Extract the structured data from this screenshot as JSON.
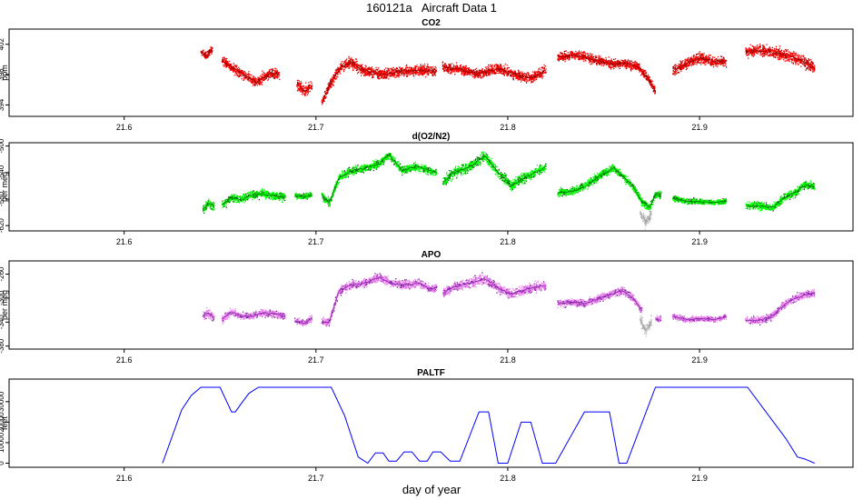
{
  "page": {
    "title": "160121a   Aircraft Data 1",
    "xlabel": "day of year"
  },
  "chart_data": [
    {
      "type": "scatter",
      "title": "CO2",
      "ylabel": "ppm",
      "xlim": [
        21.54,
        21.98
      ],
      "ylim": [
        392.5,
        404
      ],
      "xticks": [
        21.6,
        21.7,
        21.8,
        21.9
      ],
      "yticks": [
        394,
        398,
        402
      ],
      "color": "#ff0000",
      "line_color": "#8b0000",
      "segments": [
        {
          "x": [
            21.64,
            21.643,
            21.646
          ],
          "y": [
            401.0,
            400.4,
            401.4
          ],
          "spread": 1.2
        },
        {
          "x": [
            21.651,
            21.656,
            21.661,
            21.666,
            21.669,
            21.672,
            21.676,
            21.681
          ],
          "y": [
            399.9,
            399.0,
            398.2,
            397.4,
            397.0,
            397.5,
            398.2,
            398.0
          ],
          "spread": 1.6
        },
        {
          "x": [
            21.69,
            21.694,
            21.698
          ],
          "y": [
            396.8,
            395.8,
            396.5
          ],
          "spread": 1.8
        },
        {
          "x": [
            21.703,
            21.705,
            21.708,
            21.713,
            21.718,
            21.725,
            21.735,
            21.745,
            21.755,
            21.763
          ],
          "y": [
            394.0,
            395.5,
            397.0,
            399.0,
            399.6,
            398.5,
            398.0,
            398.4,
            398.6,
            398.5
          ],
          "spread": 1.6
        },
        {
          "x": [
            21.766,
            21.775,
            21.785,
            21.795,
            21.805,
            21.812,
            21.82
          ],
          "y": [
            399.0,
            398.7,
            398.1,
            398.8,
            397.9,
            397.5,
            398.6
          ],
          "spread": 1.6
        },
        {
          "x": [
            21.826,
            21.835,
            21.845,
            21.855,
            21.862,
            21.868,
            21.873,
            21.877
          ],
          "y": [
            400.3,
            400.6,
            400.0,
            399.4,
            399.5,
            399.0,
            397.6,
            395.8
          ],
          "spread": 1.4
        },
        {
          "x": [
            21.886,
            21.893,
            21.9,
            21.907,
            21.914
          ],
          "y": [
            398.5,
            399.4,
            400.2,
            399.8,
            399.7
          ],
          "spread": 1.6
        },
        {
          "x": [
            21.924,
            21.932,
            21.94,
            21.948,
            21.955,
            21.96
          ],
          "y": [
            401.0,
            401.2,
            400.8,
            400.4,
            399.6,
            398.8
          ],
          "spread": 1.8
        }
      ]
    },
    {
      "type": "scatter",
      "title": "d(O2/N2)",
      "ylabel": "per meg",
      "xlim": [
        21.54,
        21.98
      ],
      "ylim": [
        -628,
        -495
      ],
      "xticks": [
        21.6,
        21.7,
        21.8,
        21.9
      ],
      "yticks": [
        -500,
        -540,
        -580,
        -620
      ],
      "color": "#00ff00",
      "line_color": "#006400",
      "segments": [
        {
          "x": [
            21.641,
            21.644,
            21.647
          ],
          "y": [
            -595,
            -587,
            -591
          ],
          "spread": 16
        },
        {
          "x": [
            21.651,
            21.656,
            21.661,
            21.666,
            21.672,
            21.678,
            21.684
          ],
          "y": [
            -589,
            -578,
            -581,
            -574,
            -572,
            -575,
            -577
          ],
          "spread": 14
        },
        {
          "x": [
            21.689,
            21.694,
            21.698
          ],
          "y": [
            -575,
            -576,
            -574
          ],
          "spread": 10
        },
        {
          "x": [
            21.703,
            21.707,
            21.712,
            21.718,
            21.725,
            21.733,
            21.738,
            21.745,
            21.752,
            21.758,
            21.763
          ],
          "y": [
            -575,
            -586,
            -548,
            -538,
            -534,
            -527,
            -513,
            -537,
            -531,
            -536,
            -540
          ],
          "spread": 14
        },
        {
          "x": [
            21.766,
            21.772,
            21.78,
            21.788,
            21.795,
            21.802,
            21.808,
            21.815,
            21.82
          ],
          "y": [
            -556,
            -540,
            -532,
            -515,
            -540,
            -560,
            -549,
            -539,
            -531
          ],
          "spread": 18
        },
        {
          "x": [
            21.826,
            21.833,
            21.84,
            21.848,
            21.855,
            21.86,
            21.866,
            21.87,
            21.874,
            21.877,
            21.88
          ],
          "y": [
            -570,
            -569,
            -561,
            -545,
            -533,
            -545,
            -564,
            -584,
            -593,
            -574,
            -574
          ],
          "spread": 14
        },
        {
          "x": [
            21.886,
            21.893,
            21.9,
            21.908,
            21.914
          ],
          "y": [
            -578,
            -583,
            -584,
            -585,
            -583
          ],
          "spread": 10
        },
        {
          "x": [
            21.924,
            21.932,
            21.938,
            21.944,
            21.95,
            21.955,
            21.96
          ],
          "y": [
            -590,
            -590,
            -593,
            -578,
            -570,
            -558,
            -562
          ],
          "spread": 14
        }
      ],
      "flagged": [
        {
          "x": [
            21.869,
            21.872,
            21.875
          ],
          "y": [
            -600,
            -615,
            -600
          ],
          "spread": 20
        }
      ]
    },
    {
      "type": "scatter",
      "title": "APO",
      "ylabel": "per meg",
      "xlim": [
        21.54,
        21.98
      ],
      "ylim": [
        -385,
        -238
      ],
      "xticks": [
        21.6,
        21.7,
        21.8,
        21.9
      ],
      "yticks": [
        -260,
        -300,
        -340,
        -380
      ],
      "color": "#ee82ee",
      "line_color": "#7b1fa2",
      "segments": [
        {
          "x": [
            21.641,
            21.644,
            21.647
          ],
          "y": [
            -330,
            -325,
            -333
          ],
          "spread": 18
        },
        {
          "x": [
            21.651,
            21.656,
            21.661,
            21.666,
            21.672,
            21.678,
            21.684
          ],
          "y": [
            -335,
            -323,
            -330,
            -330,
            -325,
            -326,
            -331
          ],
          "spread": 14
        },
        {
          "x": [
            21.689,
            21.694,
            21.698
          ],
          "y": [
            -338,
            -342,
            -333
          ],
          "spread": 12
        },
        {
          "x": [
            21.703,
            21.707,
            21.712,
            21.718,
            21.725,
            21.733,
            21.74,
            21.747,
            21.754,
            21.76,
            21.763
          ],
          "y": [
            -340,
            -340,
            -288,
            -278,
            -276,
            -265,
            -276,
            -278,
            -275,
            -285,
            -283
          ],
          "spread": 16
        },
        {
          "x": [
            21.766,
            21.772,
            21.78,
            21.788,
            21.795,
            21.802,
            21.808,
            21.815,
            21.82
          ],
          "y": [
            -293,
            -281,
            -275,
            -268,
            -283,
            -294,
            -287,
            -281,
            -280
          ],
          "spread": 18
        },
        {
          "x": [
            21.826,
            21.833,
            21.84,
            21.848,
            21.855,
            21.86,
            21.866,
            21.87
          ],
          "y": [
            -310,
            -306,
            -310,
            -300,
            -292,
            -288,
            -302,
            -322
          ],
          "spread": 14
        },
        {
          "x": [
            21.877,
            21.88
          ],
          "y": [
            -334,
            -337
          ],
          "spread": 12
        },
        {
          "x": [
            21.886,
            21.893,
            21.9,
            21.908,
            21.914
          ],
          "y": [
            -330,
            -336,
            -334,
            -336,
            -331
          ],
          "spread": 10
        },
        {
          "x": [
            21.924,
            21.932,
            21.938,
            21.944,
            21.95,
            21.955,
            21.96
          ],
          "y": [
            -337,
            -337,
            -330,
            -311,
            -300,
            -294,
            -292
          ],
          "spread": 14
        }
      ],
      "flagged": [
        {
          "x": [
            21.869,
            21.872,
            21.875
          ],
          "y": [
            -335,
            -355,
            -338
          ],
          "spread": 20
        }
      ]
    },
    {
      "type": "line",
      "title": "PALTF",
      "ylabel": "feet",
      "xlim": [
        21.54,
        21.98
      ],
      "ylim": [
        -2000,
        41000
      ],
      "xticks": [
        21.6,
        21.7,
        21.8,
        21.9
      ],
      "yticks": [
        0,
        10000,
        20000,
        30000
      ],
      "color": "#0000ff",
      "x": [
        21.62,
        21.625,
        21.63,
        21.635,
        21.64,
        21.643,
        21.65,
        21.656,
        21.658,
        21.661,
        21.665,
        21.67,
        21.69,
        21.708,
        21.715,
        21.722,
        21.727,
        21.731,
        21.735,
        21.738,
        21.742,
        21.746,
        21.75,
        21.754,
        21.758,
        21.761,
        21.765,
        21.77,
        21.775,
        21.785,
        21.79,
        21.795,
        21.8,
        21.807,
        21.812,
        21.818,
        21.825,
        21.84,
        21.848,
        21.853,
        21.858,
        21.862,
        21.877,
        21.893,
        21.905,
        21.915,
        21.925,
        21.945,
        21.951,
        21.955,
        21.96
      ],
      "y": [
        0,
        13000,
        26000,
        33000,
        37000,
        37000,
        37000,
        25000,
        25000,
        29000,
        34000,
        37000,
        37000,
        37000,
        23000,
        3000,
        0,
        5000,
        5000,
        1000,
        1000,
        5500,
        5500,
        1000,
        1000,
        5500,
        5500,
        1000,
        1000,
        25000,
        25000,
        0,
        0,
        20000,
        20000,
        0,
        0,
        25000,
        25000,
        25000,
        0,
        0,
        37000,
        37000,
        37000,
        37000,
        37000,
        12000,
        3000,
        2000,
        0
      ]
    }
  ]
}
